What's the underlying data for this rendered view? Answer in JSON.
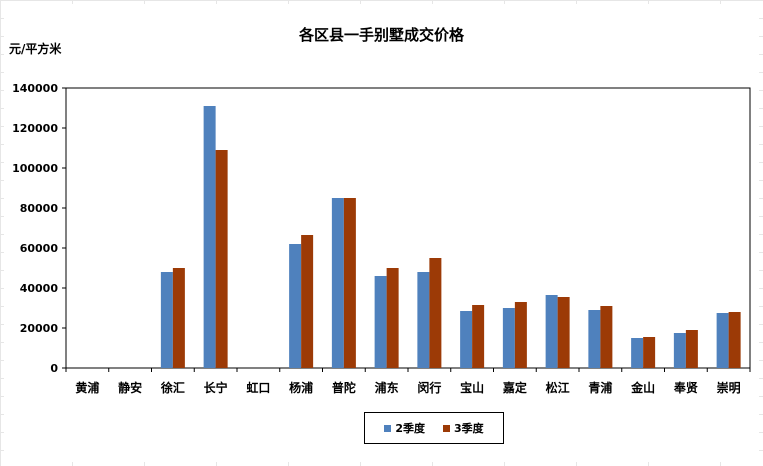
{
  "chart_data": {
    "type": "bar",
    "title": "各区县一手别墅成交价格",
    "ylabel": "元/平方米",
    "xlabel": "",
    "ylim": [
      0,
      140000
    ],
    "yticks": [
      0,
      20000,
      40000,
      60000,
      80000,
      100000,
      120000,
      140000
    ],
    "grid": false,
    "legend_position": "bottom",
    "categories": [
      "黄浦",
      "静安",
      "徐汇",
      "长宁",
      "虹口",
      "杨浦",
      "普陀",
      "浦东",
      "闵行",
      "宝山",
      "嘉定",
      "松江",
      "青浦",
      "金山",
      "奉贤",
      "崇明"
    ],
    "series": [
      {
        "name": "2季度",
        "color": "#4F81BD",
        "values": [
          null,
          null,
          48000,
          131000,
          null,
          62000,
          85000,
          46000,
          48000,
          28500,
          30000,
          36500,
          29000,
          15000,
          17500,
          27500
        ]
      },
      {
        "name": "3季度",
        "color": "#9C3A06",
        "values": [
          null,
          null,
          50000,
          109000,
          null,
          66500,
          85000,
          50000,
          55000,
          31500,
          33000,
          35500,
          31000,
          15500,
          19000,
          28000
        ]
      }
    ]
  }
}
